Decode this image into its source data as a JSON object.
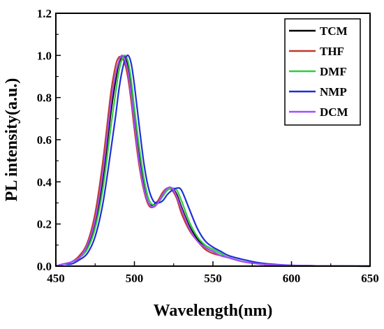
{
  "chart_data": {
    "type": "line",
    "xlabel": "Wavelength(nm)",
    "ylabel": "PL intensity(a.u.)",
    "xlim": [
      450,
      650
    ],
    "ylim": [
      0,
      1.2
    ],
    "xticks": [
      "450",
      "500",
      "550",
      "600",
      "650"
    ],
    "yticks": [
      "0.0",
      "0.2",
      "0.4",
      "0.6",
      "0.8",
      "1.0",
      "1.2"
    ],
    "legend_position": "top-right",
    "grid": false,
    "series": [
      {
        "name": "TCM",
        "color": "#000000",
        "x": [
          450,
          455,
          460,
          465,
          470,
          475,
          480,
          485,
          488,
          490,
          492,
          494,
          496,
          498,
          500,
          503,
          506,
          509,
          512,
          515,
          518,
          521,
          524,
          527,
          530,
          535,
          540,
          545,
          550,
          555,
          560,
          570,
          580,
          590,
          600,
          620,
          650
        ],
        "y": [
          0.0,
          0.01,
          0.02,
          0.04,
          0.09,
          0.2,
          0.42,
          0.73,
          0.88,
          0.96,
          0.99,
          0.99,
          0.94,
          0.84,
          0.7,
          0.52,
          0.38,
          0.3,
          0.29,
          0.31,
          0.34,
          0.37,
          0.37,
          0.34,
          0.28,
          0.19,
          0.13,
          0.09,
          0.07,
          0.05,
          0.04,
          0.02,
          0.01,
          0.005,
          0.003,
          0.001,
          0.0
        ]
      },
      {
        "name": "THF",
        "color": "#c0392b",
        "x": [
          450,
          455,
          460,
          465,
          470,
          475,
          480,
          485,
          488,
          490,
          492,
          494,
          496,
          498,
          500,
          503,
          506,
          509,
          512,
          515,
          518,
          521,
          524,
          527,
          530,
          535,
          540,
          545,
          550,
          555,
          560,
          570,
          580,
          590,
          600,
          620,
          650
        ],
        "y": [
          0.0,
          0.01,
          0.02,
          0.05,
          0.11,
          0.25,
          0.5,
          0.82,
          0.95,
          0.99,
          0.99,
          0.96,
          0.89,
          0.78,
          0.65,
          0.48,
          0.36,
          0.29,
          0.28,
          0.31,
          0.35,
          0.37,
          0.36,
          0.32,
          0.25,
          0.17,
          0.12,
          0.08,
          0.06,
          0.05,
          0.04,
          0.02,
          0.01,
          0.005,
          0.003,
          0.001,
          0.0
        ]
      },
      {
        "name": "DMF",
        "color": "#2ecc40",
        "x": [
          450,
          455,
          460,
          465,
          470,
          475,
          480,
          485,
          488,
          490,
          492,
          494,
          496,
          498,
          500,
          503,
          506,
          509,
          512,
          515,
          518,
          521,
          524,
          527,
          530,
          535,
          540,
          545,
          550,
          555,
          560,
          570,
          580,
          590,
          600,
          620,
          650
        ],
        "y": [
          0.0,
          0.01,
          0.02,
          0.04,
          0.08,
          0.18,
          0.37,
          0.66,
          0.82,
          0.92,
          0.98,
          1.0,
          0.97,
          0.88,
          0.75,
          0.57,
          0.42,
          0.32,
          0.29,
          0.3,
          0.33,
          0.36,
          0.37,
          0.36,
          0.31,
          0.21,
          0.14,
          0.1,
          0.08,
          0.06,
          0.04,
          0.02,
          0.01,
          0.005,
          0.003,
          0.001,
          0.0
        ]
      },
      {
        "name": "NMP",
        "color": "#1f2fd6",
        "x": [
          450,
          455,
          460,
          465,
          470,
          475,
          480,
          485,
          488,
          490,
          492,
          494,
          496,
          498,
          500,
          503,
          506,
          509,
          512,
          515,
          518,
          521,
          524,
          527,
          530,
          535,
          540,
          545,
          550,
          555,
          560,
          570,
          580,
          590,
          600,
          620,
          650
        ],
        "y": [
          0.0,
          0.01,
          0.01,
          0.03,
          0.06,
          0.14,
          0.3,
          0.55,
          0.71,
          0.83,
          0.92,
          0.98,
          1.0,
          0.96,
          0.86,
          0.67,
          0.49,
          0.37,
          0.31,
          0.3,
          0.31,
          0.34,
          0.36,
          0.37,
          0.36,
          0.27,
          0.18,
          0.12,
          0.09,
          0.07,
          0.05,
          0.03,
          0.015,
          0.008,
          0.004,
          0.001,
          0.0
        ]
      },
      {
        "name": "DCM",
        "color": "#a64dff",
        "x": [
          450,
          455,
          460,
          465,
          470,
          475,
          480,
          485,
          488,
          490,
          492,
          494,
          496,
          498,
          500,
          503,
          506,
          509,
          512,
          515,
          518,
          521,
          524,
          527,
          530,
          535,
          540,
          545,
          550,
          555,
          560,
          570,
          580,
          590,
          600,
          620,
          650
        ],
        "y": [
          0.0,
          0.01,
          0.02,
          0.04,
          0.1,
          0.22,
          0.45,
          0.77,
          0.91,
          0.97,
          1.0,
          0.98,
          0.92,
          0.81,
          0.68,
          0.5,
          0.37,
          0.3,
          0.28,
          0.3,
          0.34,
          0.37,
          0.37,
          0.33,
          0.27,
          0.18,
          0.12,
          0.09,
          0.07,
          0.05,
          0.04,
          0.02,
          0.01,
          0.005,
          0.003,
          0.001,
          0.0
        ]
      }
    ]
  }
}
